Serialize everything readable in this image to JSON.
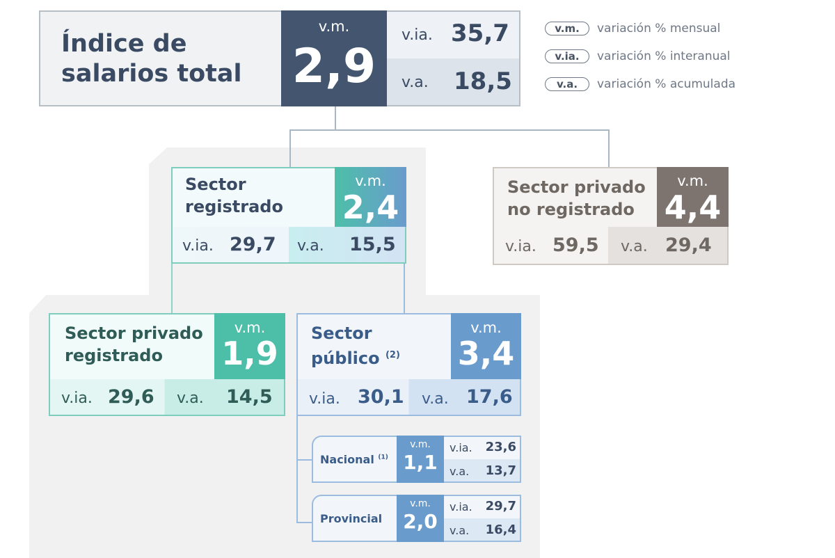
{
  "total": {
    "title_line1": "Índice de",
    "title_line2": "salarios total",
    "vm_label": "v.m.",
    "vm_value": "2,9",
    "via_label": "v.ia.",
    "via_value": "35,7",
    "va_label": "v.a.",
    "va_value": "18,5"
  },
  "legend": [
    {
      "abbr": "v.m.",
      "text": "variación % mensual"
    },
    {
      "abbr": "v.ia.",
      "text": "variación % interanual"
    },
    {
      "abbr": "v.a.",
      "text": "variación % acumulada"
    }
  ],
  "sectors": {
    "registrado": {
      "name_line1": "Sector",
      "name_line2": "registrado",
      "vm_label": "v.m.",
      "vm_value": "2,4",
      "via_label": "v.ia.",
      "via_value": "29,7",
      "va_label": "v.a.",
      "va_value": "15,5"
    },
    "no_registrado": {
      "name_line1": "Sector privado",
      "name_line2": "no registrado",
      "vm_label": "v.m.",
      "vm_value": "4,4",
      "via_label": "v.ia.",
      "via_value": "59,5",
      "va_label": "v.a.",
      "va_value": "29,4"
    },
    "privado_registrado": {
      "name_line1": "Sector privado",
      "name_line2": "registrado",
      "vm_label": "v.m.",
      "vm_value": "1,9",
      "via_label": "v.ia.",
      "via_value": "29,6",
      "va_label": "v.a.",
      "va_value": "14,5"
    },
    "publico": {
      "name_line1": "Sector",
      "name_line2": "público",
      "note": "(2)",
      "vm_label": "v.m.",
      "vm_value": "3,4",
      "via_label": "v.ia.",
      "via_value": "30,1",
      "va_label": "v.a.",
      "va_value": "17,6"
    },
    "nacional": {
      "name": "Nacional",
      "note": "(1)",
      "vm_label": "v.m.",
      "vm_value": "1,1",
      "via_label": "v.ia.",
      "via_value": "23,6",
      "va_label": "v.a.",
      "va_value": "13,7"
    },
    "provincial": {
      "name": "Provincial",
      "vm_label": "v.m.",
      "vm_value": "2,0",
      "via_label": "v.ia.",
      "via_value": "29,7",
      "va_label": "v.a.",
      "va_value": "16,4"
    }
  },
  "colors": {
    "total_dark": "#44566f",
    "registrado_teal": "#4dbfa9",
    "registrado_blue": "#6a9bcd",
    "privado_teal": "#4dbfa9",
    "publico_blue": "#6a9bcd",
    "no_registrado_gray": "#7d746f",
    "panel_gray": "#f1f1f1"
  }
}
